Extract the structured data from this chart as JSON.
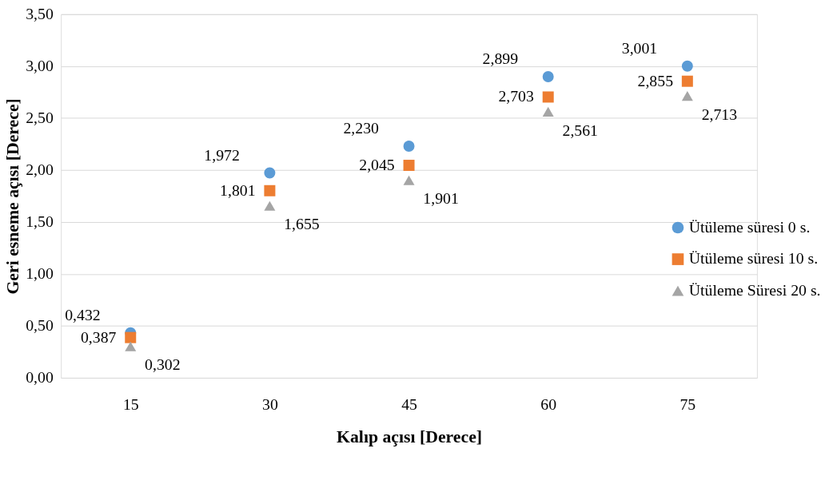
{
  "chart_data": {
    "type": "scatter",
    "xlabel": "Kalıp açısı [Derece]",
    "ylabel": "Geri esneme açısı [Derece]",
    "categories": [
      "15",
      "30",
      "45",
      "60",
      "75"
    ],
    "series": [
      {
        "name": "Ütüleme süresi 0 s.",
        "color": "#5b9bd5",
        "marker": "circle",
        "values": [
          0.432,
          1.972,
          2.23,
          2.899,
          3.001
        ],
        "value_labels": [
          "0,432",
          "1,972",
          "2,230",
          "2,899",
          "3,001"
        ]
      },
      {
        "name": "Ütüleme süresi 10 s.",
        "color": "#ed7d31",
        "marker": "square",
        "values": [
          0.387,
          1.801,
          2.045,
          2.703,
          2.855
        ],
        "value_labels": [
          "0,387",
          "1,801",
          "2,045",
          "2,703",
          "2,855"
        ]
      },
      {
        "name": "Ütüleme Süresi 20 s.",
        "color": "#a5a5a5",
        "marker": "triangle",
        "values": [
          0.302,
          1.655,
          1.901,
          2.561,
          2.713
        ],
        "value_labels": [
          "0,302",
          "1,655",
          "1,901",
          "2,561",
          "2,713"
        ]
      }
    ],
    "ylim": [
      0,
      3.5
    ],
    "yticks": [
      {
        "value": 0,
        "label": "0,00"
      },
      {
        "value": 0.5,
        "label": "0,50"
      },
      {
        "value": 1,
        "label": "1,00"
      },
      {
        "value": 1.5,
        "label": "1,50"
      },
      {
        "value": 2,
        "label": "2,00"
      },
      {
        "value": 2.5,
        "label": "2,50"
      },
      {
        "value": 3,
        "label": "3,00"
      },
      {
        "value": 3.5,
        "label": "3,50"
      }
    ],
    "grid": "y",
    "legend": "right"
  }
}
